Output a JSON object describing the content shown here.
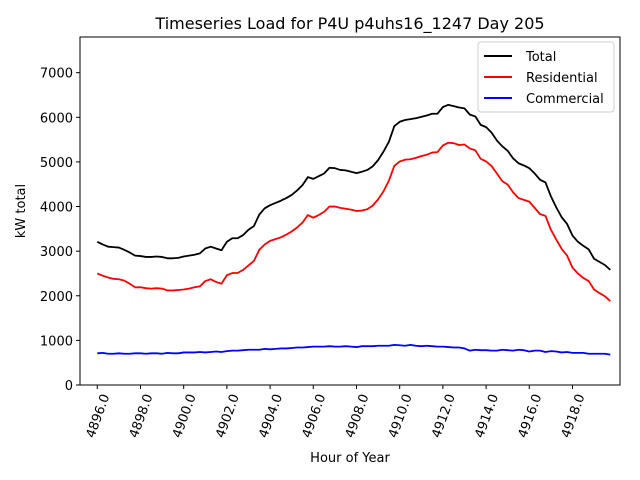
{
  "chart_data": {
    "type": "line",
    "title": "Timeseries Load for P4U p4uhs16_1247  Day 205",
    "xlabel": "Hour of Year",
    "ylabel": "kW total",
    "xlim": [
      4895.2,
      4920.2
    ],
    "ylim": [
      0,
      7800
    ],
    "xticks": [
      4896,
      4898,
      4900,
      4902,
      4904,
      4906,
      4908,
      4910,
      4912,
      4914,
      4916,
      4918
    ],
    "xtick_labels": [
      "4896.0",
      "4898.0",
      "4900.0",
      "4902.0",
      "4904.0",
      "4906.0",
      "4908.0",
      "4910.0",
      "4912.0",
      "4914.0",
      "4916.0",
      "4918.0"
    ],
    "yticks": [
      0,
      1000,
      2000,
      3000,
      4000,
      5000,
      6000,
      7000
    ],
    "ytick_labels": [
      "0",
      "1000",
      "2000",
      "3000",
      "4000",
      "5000",
      "6000",
      "7000"
    ],
    "grid": false,
    "legend_position": "top-right",
    "series": [
      {
        "name": "Total",
        "color": "#000000",
        "points": [
          [
            4896.0,
            3210
          ],
          [
            4896.25,
            3150
          ],
          [
            4896.5,
            3100
          ],
          [
            4896.75,
            3090
          ],
          [
            4897.0,
            3080
          ],
          [
            4897.25,
            3030
          ],
          [
            4897.5,
            2970
          ],
          [
            4897.75,
            2900
          ],
          [
            4898.0,
            2890
          ],
          [
            4898.25,
            2870
          ],
          [
            4898.5,
            2870
          ],
          [
            4898.75,
            2880
          ],
          [
            4899.0,
            2870
          ],
          [
            4899.25,
            2840
          ],
          [
            4899.5,
            2840
          ],
          [
            4899.75,
            2850
          ],
          [
            4900.0,
            2880
          ],
          [
            4900.25,
            2900
          ],
          [
            4900.5,
            2920
          ],
          [
            4900.75,
            2950
          ],
          [
            4901.0,
            3060
          ],
          [
            4901.25,
            3100
          ],
          [
            4901.5,
            3060
          ],
          [
            4901.75,
            3020
          ],
          [
            4902.0,
            3210
          ],
          [
            4902.25,
            3290
          ],
          [
            4902.5,
            3290
          ],
          [
            4902.75,
            3360
          ],
          [
            4903.0,
            3480
          ],
          [
            4903.25,
            3560
          ],
          [
            4903.5,
            3820
          ],
          [
            4903.75,
            3960
          ],
          [
            4904.0,
            4030
          ],
          [
            4904.25,
            4080
          ],
          [
            4904.5,
            4130
          ],
          [
            4904.75,
            4190
          ],
          [
            4905.0,
            4260
          ],
          [
            4905.25,
            4360
          ],
          [
            4905.5,
            4480
          ],
          [
            4905.75,
            4660
          ],
          [
            4906.0,
            4620
          ],
          [
            4906.25,
            4680
          ],
          [
            4906.5,
            4740
          ],
          [
            4906.75,
            4870
          ],
          [
            4907.0,
            4860
          ],
          [
            4907.25,
            4820
          ],
          [
            4907.5,
            4810
          ],
          [
            4907.75,
            4780
          ],
          [
            4908.0,
            4750
          ],
          [
            4908.25,
            4780
          ],
          [
            4908.5,
            4820
          ],
          [
            4908.75,
            4900
          ],
          [
            4909.0,
            5040
          ],
          [
            4909.25,
            5230
          ],
          [
            4909.5,
            5450
          ],
          [
            4909.75,
            5800
          ],
          [
            4910.0,
            5900
          ],
          [
            4910.25,
            5940
          ],
          [
            4910.5,
            5960
          ],
          [
            4910.75,
            5980
          ],
          [
            4911.0,
            6010
          ],
          [
            4911.25,
            6040
          ],
          [
            4911.5,
            6080
          ],
          [
            4911.75,
            6080
          ],
          [
            4912.0,
            6230
          ],
          [
            4912.25,
            6280
          ],
          [
            4912.5,
            6250
          ],
          [
            4912.75,
            6220
          ],
          [
            4913.0,
            6200
          ],
          [
            4913.25,
            6060
          ],
          [
            4913.5,
            6020
          ],
          [
            4913.75,
            5830
          ],
          [
            4914.0,
            5780
          ],
          [
            4914.25,
            5660
          ],
          [
            4914.5,
            5480
          ],
          [
            4914.75,
            5350
          ],
          [
            4915.0,
            5250
          ],
          [
            4915.25,
            5080
          ],
          [
            4915.5,
            4970
          ],
          [
            4915.75,
            4920
          ],
          [
            4916.0,
            4860
          ],
          [
            4916.25,
            4740
          ],
          [
            4916.5,
            4600
          ],
          [
            4916.75,
            4540
          ],
          [
            4917.0,
            4230
          ],
          [
            4917.25,
            3980
          ],
          [
            4917.5,
            3760
          ],
          [
            4917.75,
            3610
          ],
          [
            4918.0,
            3350
          ],
          [
            4918.25,
            3210
          ],
          [
            4918.5,
            3120
          ],
          [
            4918.75,
            3040
          ],
          [
            4919.0,
            2830
          ],
          [
            4919.25,
            2760
          ],
          [
            4919.5,
            2690
          ],
          [
            4919.75,
            2580
          ]
        ]
      },
      {
        "name": "Residential",
        "color": "#ff0000",
        "points": [
          [
            4896.0,
            2500
          ],
          [
            4896.25,
            2450
          ],
          [
            4896.5,
            2410
          ],
          [
            4896.75,
            2380
          ],
          [
            4897.0,
            2370
          ],
          [
            4897.25,
            2340
          ],
          [
            4897.5,
            2270
          ],
          [
            4897.75,
            2190
          ],
          [
            4898.0,
            2190
          ],
          [
            4898.25,
            2170
          ],
          [
            4898.5,
            2160
          ],
          [
            4898.75,
            2170
          ],
          [
            4899.0,
            2160
          ],
          [
            4899.25,
            2120
          ],
          [
            4899.5,
            2120
          ],
          [
            4899.75,
            2130
          ],
          [
            4900.0,
            2140
          ],
          [
            4900.25,
            2160
          ],
          [
            4900.5,
            2190
          ],
          [
            4900.75,
            2210
          ],
          [
            4901.0,
            2330
          ],
          [
            4901.25,
            2370
          ],
          [
            4901.5,
            2310
          ],
          [
            4901.75,
            2270
          ],
          [
            4902.0,
            2460
          ],
          [
            4902.25,
            2510
          ],
          [
            4902.5,
            2510
          ],
          [
            4902.75,
            2580
          ],
          [
            4903.0,
            2680
          ],
          [
            4903.25,
            2780
          ],
          [
            4903.5,
            3030
          ],
          [
            4903.75,
            3150
          ],
          [
            4904.0,
            3230
          ],
          [
            4904.25,
            3270
          ],
          [
            4904.5,
            3310
          ],
          [
            4904.75,
            3370
          ],
          [
            4905.0,
            3440
          ],
          [
            4905.25,
            3530
          ],
          [
            4905.5,
            3640
          ],
          [
            4905.75,
            3810
          ],
          [
            4906.0,
            3750
          ],
          [
            4906.25,
            3810
          ],
          [
            4906.5,
            3880
          ],
          [
            4906.75,
            4000
          ],
          [
            4907.0,
            4000
          ],
          [
            4907.25,
            3970
          ],
          [
            4907.5,
            3950
          ],
          [
            4907.75,
            3930
          ],
          [
            4908.0,
            3900
          ],
          [
            4908.25,
            3910
          ],
          [
            4908.5,
            3940
          ],
          [
            4908.75,
            4020
          ],
          [
            4909.0,
            4160
          ],
          [
            4909.25,
            4340
          ],
          [
            4909.5,
            4580
          ],
          [
            4909.75,
            4910
          ],
          [
            4910.0,
            5010
          ],
          [
            4910.25,
            5050
          ],
          [
            4910.5,
            5060
          ],
          [
            4910.75,
            5090
          ],
          [
            4911.0,
            5130
          ],
          [
            4911.25,
            5160
          ],
          [
            4911.5,
            5210
          ],
          [
            4911.75,
            5220
          ],
          [
            4912.0,
            5370
          ],
          [
            4912.25,
            5430
          ],
          [
            4912.5,
            5420
          ],
          [
            4912.75,
            5380
          ],
          [
            4913.0,
            5390
          ],
          [
            4913.25,
            5300
          ],
          [
            4913.5,
            5260
          ],
          [
            4913.75,
            5070
          ],
          [
            4914.0,
            5010
          ],
          [
            4914.25,
            4910
          ],
          [
            4914.5,
            4740
          ],
          [
            4914.75,
            4570
          ],
          [
            4915.0,
            4490
          ],
          [
            4915.25,
            4320
          ],
          [
            4915.5,
            4190
          ],
          [
            4915.75,
            4150
          ],
          [
            4916.0,
            4110
          ],
          [
            4916.25,
            3970
          ],
          [
            4916.5,
            3830
          ],
          [
            4916.75,
            3790
          ],
          [
            4917.0,
            3480
          ],
          [
            4917.25,
            3260
          ],
          [
            4917.5,
            3050
          ],
          [
            4917.75,
            2900
          ],
          [
            4918.0,
            2630
          ],
          [
            4918.25,
            2500
          ],
          [
            4918.5,
            2400
          ],
          [
            4918.75,
            2330
          ],
          [
            4919.0,
            2140
          ],
          [
            4919.25,
            2060
          ],
          [
            4919.5,
            1990
          ],
          [
            4919.75,
            1880
          ]
        ]
      },
      {
        "name": "Commercial",
        "color": "#0000ff",
        "points": [
          [
            4896.0,
            710
          ],
          [
            4896.25,
            720
          ],
          [
            4896.5,
            700
          ],
          [
            4896.75,
            700
          ],
          [
            4897.0,
            710
          ],
          [
            4897.25,
            700
          ],
          [
            4897.5,
            700
          ],
          [
            4897.75,
            710
          ],
          [
            4898.0,
            710
          ],
          [
            4898.25,
            700
          ],
          [
            4898.5,
            710
          ],
          [
            4898.75,
            710
          ],
          [
            4899.0,
            700
          ],
          [
            4899.25,
            720
          ],
          [
            4899.5,
            710
          ],
          [
            4899.75,
            710
          ],
          [
            4900.0,
            730
          ],
          [
            4900.25,
            730
          ],
          [
            4900.5,
            730
          ],
          [
            4900.75,
            740
          ],
          [
            4901.0,
            730
          ],
          [
            4901.25,
            740
          ],
          [
            4901.5,
            750
          ],
          [
            4901.75,
            740
          ],
          [
            4902.0,
            760
          ],
          [
            4902.25,
            770
          ],
          [
            4902.5,
            770
          ],
          [
            4902.75,
            780
          ],
          [
            4903.0,
            790
          ],
          [
            4903.25,
            790
          ],
          [
            4903.5,
            790
          ],
          [
            4903.75,
            810
          ],
          [
            4904.0,
            800
          ],
          [
            4904.25,
            810
          ],
          [
            4904.5,
            820
          ],
          [
            4904.75,
            820
          ],
          [
            4905.0,
            830
          ],
          [
            4905.25,
            840
          ],
          [
            4905.5,
            840
          ],
          [
            4905.75,
            850
          ],
          [
            4906.0,
            860
          ],
          [
            4906.25,
            860
          ],
          [
            4906.5,
            860
          ],
          [
            4906.75,
            870
          ],
          [
            4907.0,
            860
          ],
          [
            4907.25,
            860
          ],
          [
            4907.5,
            870
          ],
          [
            4907.75,
            860
          ],
          [
            4908.0,
            850
          ],
          [
            4908.25,
            870
          ],
          [
            4908.5,
            870
          ],
          [
            4908.75,
            870
          ],
          [
            4909.0,
            880
          ],
          [
            4909.25,
            880
          ],
          [
            4909.5,
            880
          ],
          [
            4909.75,
            900
          ],
          [
            4910.0,
            890
          ],
          [
            4910.25,
            880
          ],
          [
            4910.5,
            900
          ],
          [
            4910.75,
            880
          ],
          [
            4911.0,
            870
          ],
          [
            4911.25,
            880
          ],
          [
            4911.5,
            870
          ],
          [
            4911.75,
            860
          ],
          [
            4912.0,
            860
          ],
          [
            4912.25,
            850
          ],
          [
            4912.5,
            840
          ],
          [
            4912.75,
            840
          ],
          [
            4913.0,
            820
          ],
          [
            4913.25,
            770
          ],
          [
            4913.5,
            790
          ],
          [
            4913.75,
            780
          ],
          [
            4914.0,
            780
          ],
          [
            4914.25,
            770
          ],
          [
            4914.5,
            770
          ],
          [
            4914.75,
            790
          ],
          [
            4915.0,
            780
          ],
          [
            4915.25,
            770
          ],
          [
            4915.5,
            790
          ],
          [
            4915.75,
            780
          ],
          [
            4916.0,
            750
          ],
          [
            4916.25,
            770
          ],
          [
            4916.5,
            770
          ],
          [
            4916.75,
            740
          ],
          [
            4917.0,
            760
          ],
          [
            4917.25,
            750
          ],
          [
            4917.5,
            730
          ],
          [
            4917.75,
            740
          ],
          [
            4918.0,
            720
          ],
          [
            4918.25,
            720
          ],
          [
            4918.5,
            720
          ],
          [
            4918.75,
            700
          ],
          [
            4919.0,
            700
          ],
          [
            4919.25,
            700
          ],
          [
            4919.5,
            700
          ],
          [
            4919.75,
            680
          ]
        ]
      }
    ]
  }
}
